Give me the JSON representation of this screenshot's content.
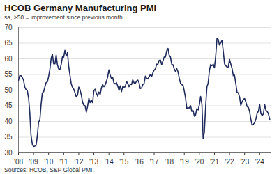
{
  "chart_data": {
    "type": "line",
    "title": "HCOB Germany Manufacturing PMI",
    "subtitle": "sa, >50 = improvement since previous month",
    "source": "Sources: HCOB, S&P Global PMI.",
    "color": "#1f2a5c",
    "grid": true,
    "xlim": [
      2008,
      2024.75
    ],
    "xticks": [
      {
        "value": 2008,
        "label": "'08"
      },
      {
        "value": 2009,
        "label": "'09"
      },
      {
        "value": 2010,
        "label": "'10"
      },
      {
        "value": 2011,
        "label": "'11"
      },
      {
        "value": 2012,
        "label": "'12"
      },
      {
        "value": 2013,
        "label": "'13"
      },
      {
        "value": 2014,
        "label": "'14"
      },
      {
        "value": 2015,
        "label": "'15"
      },
      {
        "value": 2016,
        "label": "'16"
      },
      {
        "value": 2017,
        "label": "'17"
      },
      {
        "value": 2018,
        "label": "'18"
      },
      {
        "value": 2019,
        "label": "'19"
      },
      {
        "value": 2020,
        "label": "'20"
      },
      {
        "value": 2021,
        "label": "'21"
      },
      {
        "value": 2022,
        "label": "'22"
      },
      {
        "value": 2023,
        "label": "'23"
      },
      {
        "value": 2024,
        "label": "'24"
      }
    ],
    "ylim": [
      30,
      70
    ],
    "yticks": [
      30,
      35,
      40,
      45,
      50,
      55,
      60,
      65,
      70
    ],
    "x": [
      2008,
      2008.08,
      2008.17,
      2008.25,
      2008.33,
      2008.42,
      2008.5,
      2008.58,
      2008.67,
      2008.75,
      2008.83,
      2008.92,
      2009,
      2009.08,
      2009.17,
      2009.25,
      2009.33,
      2009.42,
      2009.5,
      2009.58,
      2009.67,
      2009.75,
      2009.83,
      2009.92,
      2010,
      2010.08,
      2010.17,
      2010.25,
      2010.33,
      2010.42,
      2010.5,
      2010.58,
      2010.67,
      2010.75,
      2010.83,
      2010.92,
      2011,
      2011.08,
      2011.17,
      2011.25,
      2011.33,
      2011.42,
      2011.5,
      2011.58,
      2011.67,
      2011.75,
      2011.83,
      2011.92,
      2012,
      2012.08,
      2012.17,
      2012.25,
      2012.33,
      2012.42,
      2012.5,
      2012.58,
      2012.67,
      2012.75,
      2012.83,
      2012.92,
      2013,
      2013.08,
      2013.17,
      2013.25,
      2013.33,
      2013.42,
      2013.5,
      2013.58,
      2013.67,
      2013.75,
      2013.83,
      2013.92,
      2014,
      2014.08,
      2014.17,
      2014.25,
      2014.33,
      2014.42,
      2014.5,
      2014.58,
      2014.67,
      2014.75,
      2014.83,
      2014.92,
      2015,
      2015.08,
      2015.17,
      2015.25,
      2015.33,
      2015.42,
      2015.5,
      2015.58,
      2015.67,
      2015.75,
      2015.83,
      2015.92,
      2016,
      2016.08,
      2016.17,
      2016.25,
      2016.33,
      2016.42,
      2016.5,
      2016.58,
      2016.67,
      2016.75,
      2016.83,
      2016.92,
      2017,
      2017.08,
      2017.17,
      2017.25,
      2017.33,
      2017.42,
      2017.5,
      2017.58,
      2017.67,
      2017.75,
      2017.83,
      2017.92,
      2018,
      2018.08,
      2018.17,
      2018.25,
      2018.33,
      2018.42,
      2018.5,
      2018.58,
      2018.67,
      2018.75,
      2018.83,
      2018.92,
      2019,
      2019.08,
      2019.17,
      2019.25,
      2019.33,
      2019.42,
      2019.5,
      2019.58,
      2019.67,
      2019.75,
      2019.83,
      2019.92,
      2020,
      2020.08,
      2020.17,
      2020.25,
      2020.33,
      2020.42,
      2020.5,
      2020.58,
      2020.67,
      2020.75,
      2020.83,
      2020.92,
      2021,
      2021.08,
      2021.17,
      2021.25,
      2021.33,
      2021.42,
      2021.5,
      2021.58,
      2021.67,
      2021.75,
      2021.83,
      2021.92,
      2022,
      2022.08,
      2022.17,
      2022.25,
      2022.33,
      2022.42,
      2022.5,
      2022.58,
      2022.67,
      2022.75,
      2022.83,
      2022.92,
      2023,
      2023.08,
      2023.17,
      2023.25,
      2023.33,
      2023.42,
      2023.5,
      2023.58,
      2023.67,
      2023.75,
      2023.83,
      2023.92,
      2024,
      2024.08,
      2024.17,
      2024.25,
      2024.33,
      2024.42,
      2024.5,
      2024.58,
      2024.67
    ],
    "values": [
      53.1,
      54.6,
      54.6,
      54.0,
      53.3,
      50.9,
      50.2,
      49.9,
      47.5,
      42.9,
      35.7,
      32.7,
      32.0,
      32.1,
      32.4,
      35.4,
      39.6,
      40.6,
      45.4,
      49.1,
      49.5,
      51.0,
      52.4,
      52.7,
      54.4,
      56.6,
      60.2,
      61.5,
      58.4,
      58.4,
      61.2,
      58.2,
      56.7,
      56.6,
      58.1,
      60.7,
      60.5,
      62.7,
      60.9,
      62.0,
      57.7,
      54.6,
      52.0,
      50.9,
      50.3,
      49.1,
      47.9,
      48.4,
      51.0,
      50.2,
      48.4,
      46.2,
      45.2,
      45.0,
      43.0,
      44.7,
      47.4,
      46.0,
      46.8,
      46.0,
      49.8,
      50.3,
      49.0,
      48.1,
      49.4,
      48.6,
      50.7,
      51.8,
      51.1,
      51.7,
      52.7,
      54.3,
      56.5,
      54.8,
      53.7,
      54.1,
      52.3,
      52.0,
      52.4,
      51.4,
      49.9,
      51.4,
      49.5,
      51.2,
      50.9,
      51.1,
      52.8,
      52.1,
      51.1,
      51.9,
      51.8,
      53.3,
      52.3,
      52.1,
      52.9,
      53.2,
      52.3,
      50.5,
      50.7,
      51.8,
      52.1,
      54.5,
      53.8,
      53.6,
      54.3,
      55.0,
      54.3,
      55.6,
      56.4,
      56.8,
      58.3,
      58.2,
      59.5,
      59.6,
      58.1,
      59.3,
      60.6,
      60.6,
      62.5,
      63.3,
      61.1,
      60.6,
      58.2,
      58.1,
      56.9,
      55.9,
      56.9,
      55.9,
      53.7,
      52.2,
      51.8,
      51.5,
      49.7,
      47.6,
      44.1,
      44.4,
      44.3,
      45.0,
      43.2,
      43.5,
      41.7,
      42.1,
      44.1,
      43.7,
      45.3,
      48.0,
      45.4,
      34.5,
      36.6,
      45.2,
      51.0,
      52.2,
      56.4,
      58.2,
      57.8,
      58.3,
      57.1,
      60.7,
      66.6,
      66.2,
      64.4,
      65.1,
      65.9,
      62.6,
      58.4,
      57.8,
      57.4,
      57.4,
      59.8,
      58.4,
      56.9,
      54.6,
      54.8,
      52.0,
      49.3,
      49.1,
      47.8,
      45.1,
      46.2,
      47.1,
      47.3,
      46.3,
      44.7,
      44.5,
      43.2,
      40.6,
      38.8,
      39.1,
      39.6,
      40.8,
      42.6,
      43.3,
      45.5,
      42.5,
      41.9,
      42.5,
      45.4,
      43.5,
      43.2,
      42.4,
      40.6
    ]
  }
}
